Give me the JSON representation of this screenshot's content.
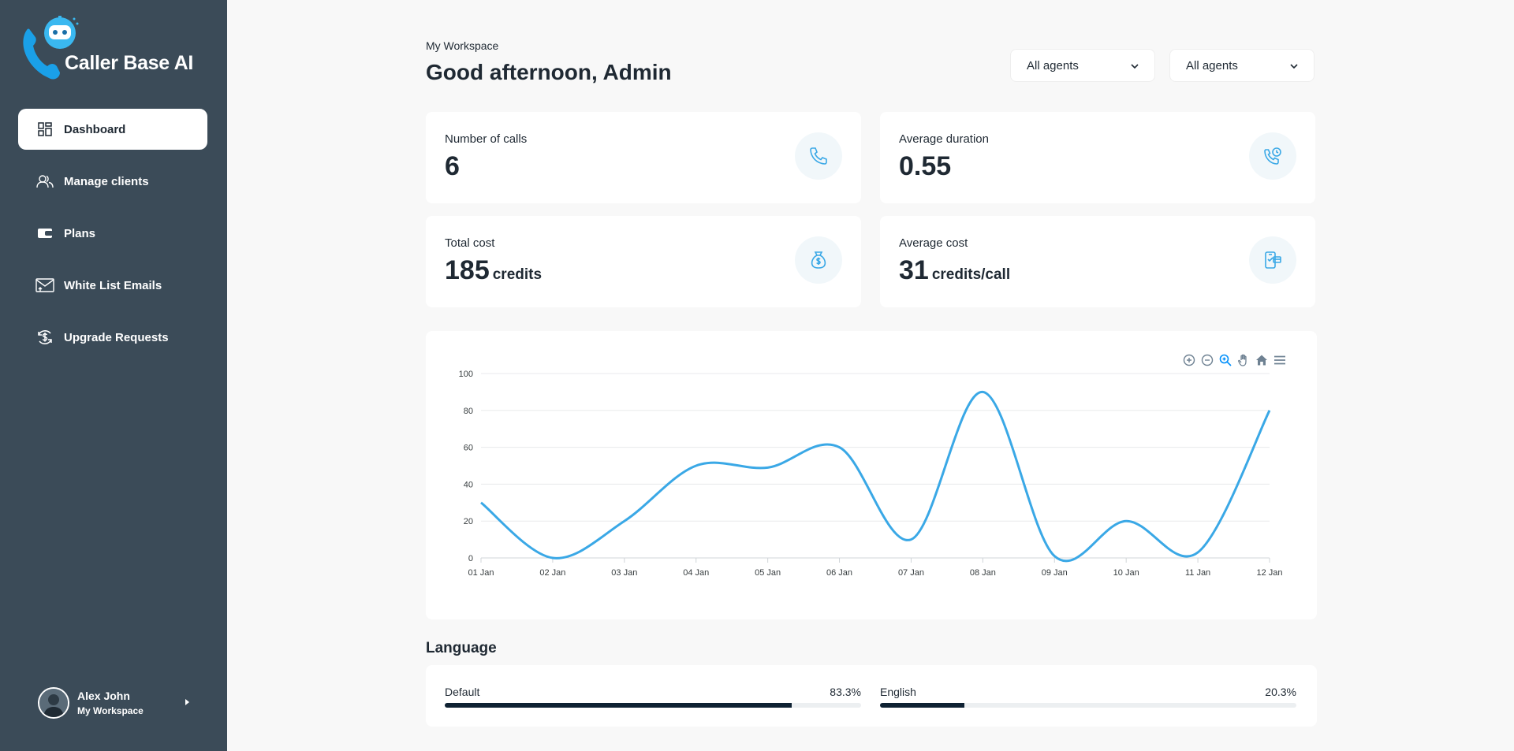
{
  "brand": {
    "name": "Caller Base AI",
    "logo_icon": "robot-phone-icon"
  },
  "sidebar": {
    "items": [
      {
        "label": "Dashboard",
        "icon": "dashboard-icon",
        "active": true
      },
      {
        "label": "Manage clients",
        "icon": "users-icon",
        "active": false
      },
      {
        "label": "Plans",
        "icon": "wallet-icon",
        "active": false
      },
      {
        "label": "White List Emails",
        "icon": "mail-icon",
        "active": false
      },
      {
        "label": "Upgrade Requests",
        "icon": "dollar-refresh-icon",
        "active": false
      }
    ]
  },
  "user": {
    "name": "Alex John",
    "workspace": "My Workspace"
  },
  "header": {
    "workspace_label": "My Workspace",
    "greeting": "Good afternoon, Admin",
    "filter1": "All agents",
    "filter2": "All agents"
  },
  "stats": {
    "calls": {
      "label": "Number of calls",
      "value": "6",
      "unit": ""
    },
    "duration": {
      "label": "Average duration",
      "value": "0.55",
      "unit": ""
    },
    "total_cost": {
      "label": "Total cost",
      "value": "185",
      "unit": "credits"
    },
    "avg_cost": {
      "label": "Average cost",
      "value": "31",
      "unit": "credits/call"
    }
  },
  "colors": {
    "accent": "#3aa8e6",
    "sidebar": "#3b4b58",
    "bar": "#0f2233"
  },
  "chart_data": {
    "type": "line",
    "categories": [
      "01 Jan",
      "02 Jan",
      "03 Jan",
      "04 Jan",
      "05 Jan",
      "06 Jan",
      "07 Jan",
      "08 Jan",
      "09 Jan",
      "10 Jan",
      "11 Jan",
      "12 Jan"
    ],
    "series": [
      {
        "values": [
          30,
          0,
          20,
          50,
          49,
          60,
          10,
          90,
          1,
          20,
          3,
          80
        ]
      }
    ],
    "y_ticks": [
      0,
      20,
      40,
      60,
      80,
      100
    ],
    "ylim": [
      0,
      100
    ],
    "grid": true,
    "curve": "smooth",
    "toolbar": [
      "zoom-in-icon",
      "zoom-out-icon",
      "zoom-select-icon",
      "pan-hand-icon",
      "home-icon",
      "menu-icon"
    ]
  },
  "language": {
    "title": "Language",
    "items": [
      {
        "label": "Default",
        "percent_text": "83.3%",
        "percent": 83.3
      },
      {
        "label": "English",
        "percent_text": "20.3%",
        "percent": 20.3
      }
    ]
  }
}
